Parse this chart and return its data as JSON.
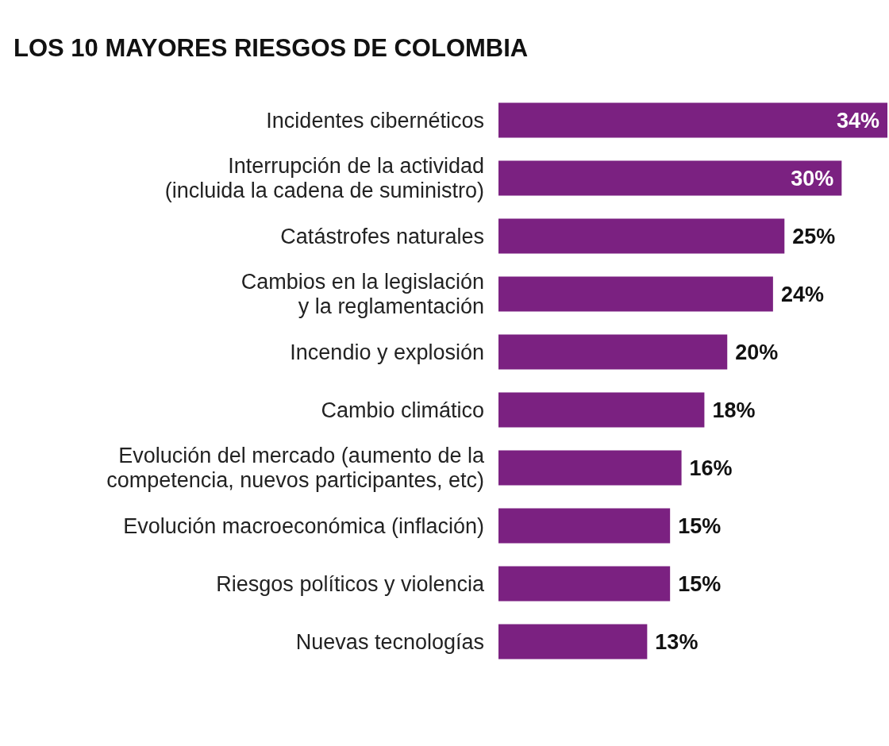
{
  "chart_data": {
    "type": "bar",
    "orientation": "horizontal",
    "title": "LOS 10 MAYORES RIESGOS DE COLOMBIA",
    "categories": [
      "Incidentes cibernéticos",
      "Interrupción de la actividad\n(incluida la cadena de suministro)",
      "Catástrofes naturales",
      "Cambios en la legislación\ny la reglamentación",
      "Incendio y explosión",
      "Cambio climático",
      "Evolución del mercado (aumento de la\ncompetencia, nuevos participantes, etc)",
      "Evolución macroeconómica (inflación)",
      "Riesgos políticos y violencia",
      "Nuevas tecnologías"
    ],
    "values": [
      34,
      30,
      25,
      24,
      20,
      18,
      16,
      15,
      15,
      13
    ],
    "value_labels": [
      "34%",
      "30%",
      "25%",
      "24%",
      "20%",
      "18%",
      "16%",
      "15%",
      "15%",
      "13%"
    ],
    "color": "#7b2181"
  }
}
